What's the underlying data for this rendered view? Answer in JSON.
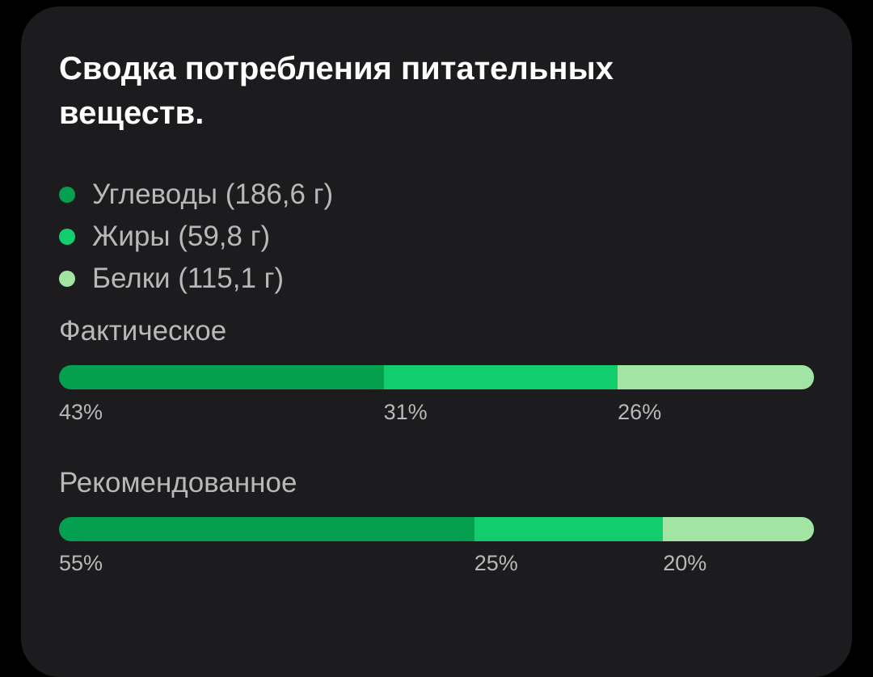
{
  "card": {
    "title": "Сводка потребления питательных веществ."
  },
  "colors": {
    "carbs": "#05a04f",
    "fats": "#12cd6e",
    "protein": "#a2e4a4",
    "card_bg": "#1c1c1e",
    "label": "#b8b8b8"
  },
  "legend": [
    {
      "label": "Углеводы (186,6 г)",
      "color_key": "carbs",
      "icon": "dot-icon"
    },
    {
      "label": "Жиры (59,8 г)",
      "color_key": "fats",
      "icon": "dot-icon"
    },
    {
      "label": "Белки (115,1 г)",
      "color_key": "protein",
      "icon": "dot-icon"
    }
  ],
  "actual": {
    "label": "Фактическое",
    "segments": [
      {
        "value": 43,
        "text": "43%",
        "color_key": "carbs"
      },
      {
        "value": 31,
        "text": "31%",
        "color_key": "fats"
      },
      {
        "value": 26,
        "text": "26%",
        "color_key": "protein"
      }
    ]
  },
  "recommended": {
    "label": "Рекомендованное",
    "segments": [
      {
        "value": 55,
        "text": "55%",
        "color_key": "carbs"
      },
      {
        "value": 25,
        "text": "25%",
        "color_key": "fats"
      },
      {
        "value": 20,
        "text": "20%",
        "color_key": "protein"
      }
    ]
  }
}
